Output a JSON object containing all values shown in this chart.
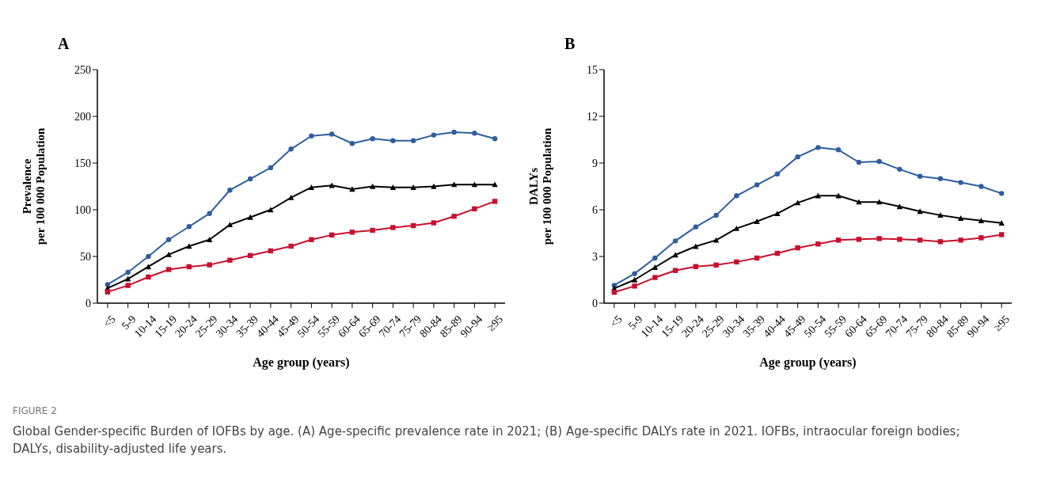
{
  "chart_data": [
    {
      "type": "line",
      "title": "A",
      "xlabel": "Age group (years)",
      "ylabel": "Prevalence\nper 100 000 Population",
      "categories": [
        "<5",
        "5-9",
        "10-14",
        "15-19",
        "20-24",
        "25-29",
        "30-34",
        "35-39",
        "40-44",
        "45-49",
        "50-54",
        "55-59",
        "60-64",
        "65-69",
        "70-74",
        "75-79",
        "80-84",
        "85-89",
        "90-94",
        "≥95"
      ],
      "series": [
        {
          "color": "#2f5d9e",
          "marker": "circle",
          "values": [
            20,
            33,
            50,
            68,
            82,
            96,
            121,
            133,
            145,
            165,
            179,
            181,
            171,
            176,
            174,
            174,
            180,
            183,
            182,
            176
          ]
        },
        {
          "color": "#000000",
          "marker": "triangle",
          "values": [
            16,
            26,
            39,
            52,
            61,
            68,
            84,
            92,
            100,
            113,
            124,
            126,
            122,
            125,
            124,
            124,
            125,
            127,
            127,
            127
          ]
        },
        {
          "color": "#c8102e",
          "marker": "square",
          "values": [
            12,
            19,
            28,
            36,
            39,
            41,
            46,
            51,
            56,
            61,
            68,
            73,
            76,
            78,
            81,
            83,
            86,
            93,
            101,
            109
          ]
        }
      ],
      "ylim": [
        0,
        250
      ],
      "yticks": [
        0,
        50,
        100,
        150,
        200,
        250
      ],
      "grid": false,
      "legend": false
    },
    {
      "type": "line",
      "title": "B",
      "xlabel": "Age group (years)",
      "ylabel": "DALYs\nper 100 000 Population",
      "categories": [
        "<5",
        "5-9",
        "10-14",
        "15-19",
        "20-24",
        "25-29",
        "30-34",
        "35-39",
        "40-44",
        "45-49",
        "50-54",
        "55-59",
        "60-64",
        "65-69",
        "70-74",
        "75-79",
        "80-84",
        "85-89",
        "90-94",
        "≥95"
      ],
      "series": [
        {
          "color": "#2f5d9e",
          "marker": "circle",
          "values": [
            1.15,
            1.9,
            2.9,
            4.0,
            4.9,
            5.65,
            6.9,
            7.6,
            8.3,
            9.4,
            10.0,
            9.85,
            9.05,
            9.1,
            8.6,
            8.15,
            8.0,
            7.75,
            7.5,
            7.05
          ]
        },
        {
          "color": "#000000",
          "marker": "triangle",
          "values": [
            0.95,
            1.5,
            2.3,
            3.1,
            3.65,
            4.05,
            4.8,
            5.25,
            5.75,
            6.45,
            6.9,
            6.9,
            6.5,
            6.5,
            6.2,
            5.9,
            5.65,
            5.45,
            5.3,
            5.15
          ]
        },
        {
          "color": "#c8102e",
          "marker": "square",
          "values": [
            0.7,
            1.1,
            1.65,
            2.1,
            2.35,
            2.45,
            2.65,
            2.9,
            3.2,
            3.55,
            3.8,
            4.05,
            4.1,
            4.15,
            4.1,
            4.05,
            3.95,
            4.05,
            4.2,
            4.4
          ]
        }
      ],
      "ylim": [
        0,
        15
      ],
      "yticks": [
        0,
        3,
        6,
        9,
        12,
        15
      ],
      "grid": false,
      "legend": false,
      "annotations": [
        "FIGURE 2",
        "Global Gender-specific Burden of IOFBs by age. (A) Age-specific prevalence rate in 2021; (B) Age-specific DALYs rate in 2021. IOFBs, intraocular foreign bodies; DALYs, disability-adjusted life years."
      ]
    }
  ]
}
